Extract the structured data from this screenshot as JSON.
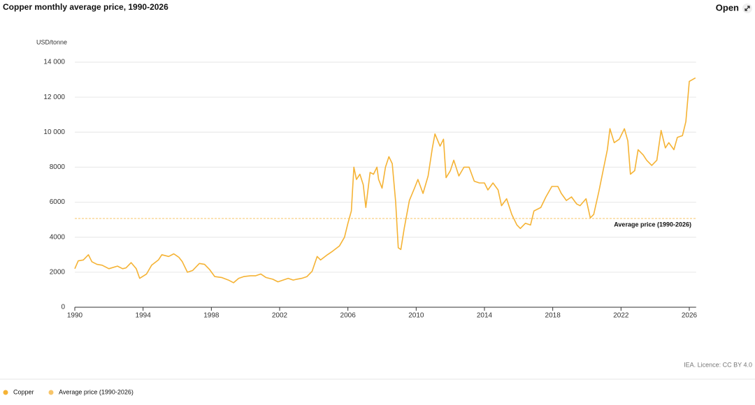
{
  "chart_data": {
    "type": "line",
    "title": "Copper monthly average price, 1990-2026",
    "open_button": "Open",
    "y_label": "USD/tonne",
    "source": "IEA. Licence: CC BY 4.0",
    "x": [
      1990.0,
      1990.2,
      1990.5,
      1990.8,
      1991.0,
      1991.3,
      1991.6,
      1992.0,
      1992.5,
      1992.8,
      1993.0,
      1993.3,
      1993.6,
      1993.8,
      1994.2,
      1994.5,
      1994.9,
      1995.1,
      1995.5,
      1995.8,
      1996.1,
      1996.3,
      1996.6,
      1996.9,
      1997.3,
      1997.6,
      1997.9,
      1998.2,
      1998.6,
      1999.0,
      1999.3,
      1999.6,
      1999.9,
      2000.3,
      2000.6,
      2000.9,
      2001.2,
      2001.6,
      2001.9,
      2002.2,
      2002.5,
      2002.8,
      2003.0,
      2003.3,
      2003.6,
      2003.9,
      2004.2,
      2004.4,
      2004.8,
      2005.1,
      2005.5,
      2005.8,
      2006.0,
      2006.2,
      2006.35,
      2006.5,
      2006.7,
      2006.9,
      2007.05,
      2007.3,
      2007.5,
      2007.7,
      2007.8,
      2008.0,
      2008.2,
      2008.4,
      2008.6,
      2008.8,
      2008.95,
      2009.1,
      2009.3,
      2009.6,
      2009.9,
      2010.1,
      2010.4,
      2010.7,
      2010.95,
      2011.1,
      2011.4,
      2011.6,
      2011.75,
      2012.0,
      2012.2,
      2012.5,
      2012.8,
      2013.1,
      2013.4,
      2013.7,
      2014.0,
      2014.2,
      2014.5,
      2014.8,
      2015.0,
      2015.3,
      2015.6,
      2015.9,
      2016.1,
      2016.4,
      2016.7,
      2016.9,
      2017.3,
      2017.6,
      2017.95,
      2018.3,
      2018.5,
      2018.8,
      2019.1,
      2019.4,
      2019.6,
      2019.95,
      2020.2,
      2020.4,
      2020.7,
      2020.95,
      2021.2,
      2021.35,
      2021.6,
      2021.9,
      2022.2,
      2022.4,
      2022.55,
      2022.8,
      2023.0,
      2023.3,
      2023.5,
      2023.8,
      2024.1,
      2024.35,
      2024.6,
      2024.8,
      2025.1,
      2025.3,
      2025.6,
      2025.8,
      2026.0,
      2026.36
    ],
    "series": [
      {
        "name": "Copper",
        "color": "#f5b335",
        "values": [
          2200,
          2650,
          2700,
          3000,
          2600,
          2450,
          2400,
          2200,
          2350,
          2200,
          2250,
          2550,
          2200,
          1650,
          1900,
          2400,
          2700,
          3000,
          2900,
          3050,
          2850,
          2600,
          2000,
          2100,
          2500,
          2450,
          2150,
          1750,
          1700,
          1550,
          1400,
          1650,
          1750,
          1800,
          1800,
          1900,
          1700,
          1600,
          1450,
          1550,
          1650,
          1550,
          1600,
          1650,
          1750,
          2050,
          2900,
          2700,
          3000,
          3200,
          3500,
          4000,
          4800,
          5500,
          8000,
          7300,
          7600,
          7000,
          5700,
          7700,
          7600,
          8000,
          7300,
          6800,
          8000,
          8600,
          8200,
          6000,
          3400,
          3300,
          4500,
          6100,
          6800,
          7300,
          6500,
          7500,
          9100,
          9900,
          9200,
          9600,
          7400,
          7800,
          8400,
          7500,
          8000,
          8000,
          7200,
          7100,
          7100,
          6700,
          7100,
          6700,
          5800,
          6200,
          5300,
          4700,
          4500,
          4800,
          4700,
          5500,
          5700,
          6300,
          6900,
          6900,
          6500,
          6100,
          6300,
          5900,
          5800,
          6200,
          5100,
          5300,
          6600,
          7800,
          9000,
          10200,
          9400,
          9600,
          10200,
          9500,
          7600,
          7800,
          9000,
          8700,
          8400,
          8100,
          8400,
          10100,
          9100,
          9400,
          9000,
          9700,
          9800,
          10600,
          12900,
          13100
        ]
      }
    ],
    "reference_line": {
      "name": "Average price (1990-2026)",
      "value": 5070,
      "color": "#f7c56a"
    },
    "xlim": [
      1990,
      2026.4
    ],
    "xticks": [
      1990,
      1994,
      1998,
      2002,
      2006,
      2010,
      2014,
      2018,
      2022,
      2026
    ],
    "ylim": [
      0,
      14000
    ],
    "yticks": [
      0,
      2000,
      4000,
      6000,
      8000,
      {
        "value": 10000,
        "label": "10 000"
      },
      {
        "value": 12000,
        "label": "12 000"
      },
      {
        "value": 14000,
        "label": "14 000"
      }
    ],
    "grid": true
  }
}
